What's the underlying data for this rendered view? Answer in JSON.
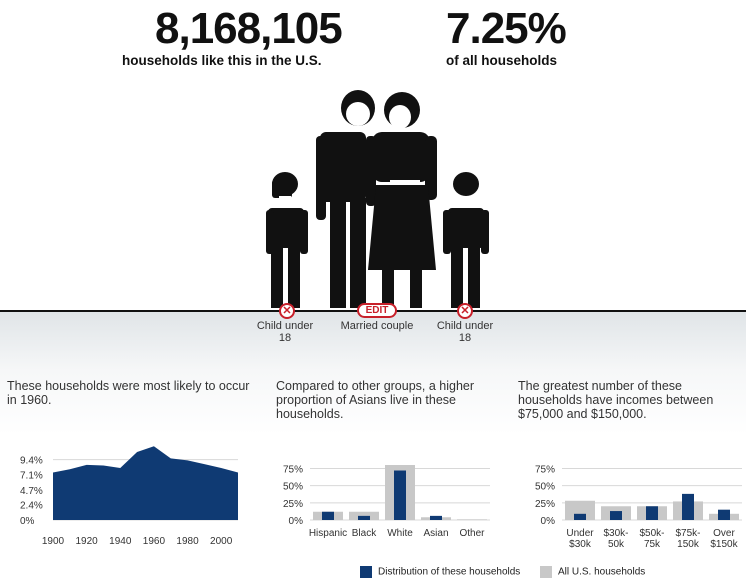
{
  "summary": {
    "household_count": "8,168,105",
    "household_count_label": "households like this in the U.S.",
    "share": "7.25%",
    "share_label": "of all households"
  },
  "members": [
    {
      "label": "Child under 18",
      "control": "remove"
    },
    {
      "label": "Married couple",
      "control": "EDIT"
    },
    {
      "label": "Child under 18",
      "control": "remove"
    }
  ],
  "descriptions": {
    "year": "These households were most likely to occur in 1960.",
    "race": "Compared to other groups, a higher proportion of Asians live in these households.",
    "income": "The greatest number of these households have incomes between $75,000 and $150,000."
  },
  "legend": {
    "these": "Distribution of these households",
    "all": "All U.S. households"
  },
  "colors": {
    "navy": "#0f3a73",
    "gray": "#c8c8c8",
    "accent": "#c8202a"
  },
  "chart_data": [
    {
      "type": "area",
      "x": [
        1900,
        1910,
        1920,
        1930,
        1940,
        1950,
        1960,
        1970,
        1980,
        1990,
        2000,
        2010
      ],
      "y": [
        7.4,
        7.9,
        8.6,
        8.5,
        8.1,
        10.6,
        11.5,
        9.6,
        9.3,
        8.7,
        8.1,
        7.4
      ],
      "ytick_labels": [
        "9.4%",
        "7.1%",
        "4.7%",
        "2.4%",
        "0%"
      ],
      "ytick_values": [
        9.4,
        7.1,
        4.7,
        2.4,
        0
      ],
      "xtick_labels": [
        "1900",
        "1920",
        "1940",
        "1960",
        "1980",
        "2000"
      ],
      "xtick_values": [
        1900,
        1920,
        1940,
        1960,
        1980,
        2000
      ],
      "ylim": [
        0,
        12
      ]
    },
    {
      "type": "bar",
      "categories": [
        "Hispanic",
        "Black",
        "White",
        "Asian",
        "Other"
      ],
      "series": [
        {
          "name": "Distribution of these households",
          "values": [
            12,
            6,
            72,
            6,
            0
          ]
        },
        {
          "name": "All U.S. households",
          "values": [
            12,
            12,
            80,
            4,
            1
          ]
        }
      ],
      "ytick_labels": [
        "75%",
        "50%",
        "25%",
        "0%"
      ],
      "ytick_values": [
        75,
        50,
        25,
        0
      ],
      "ylim": [
        0,
        80
      ]
    },
    {
      "type": "bar",
      "categories": [
        "Under $30k",
        "$30k- 50k",
        "$50k- 75k",
        "$75k- 150k",
        "Over $150k"
      ],
      "series": [
        {
          "name": "Distribution of these households",
          "values": [
            9,
            13,
            20,
            38,
            15
          ]
        },
        {
          "name": "All U.S. households",
          "values": [
            28,
            20,
            20,
            27,
            9
          ]
        }
      ],
      "ytick_labels": [
        "75%",
        "50%",
        "25%",
        "0%"
      ],
      "ytick_values": [
        75,
        50,
        25,
        0
      ],
      "ylim": [
        0,
        80
      ]
    }
  ]
}
